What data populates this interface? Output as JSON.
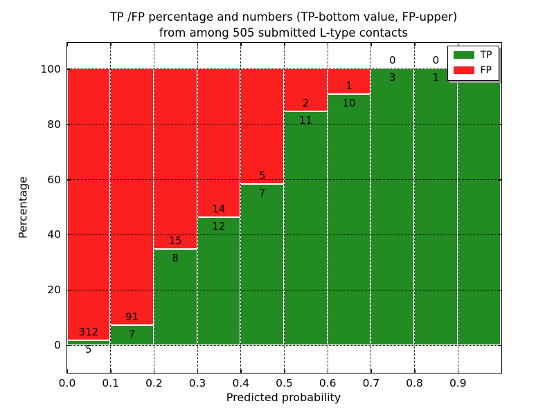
{
  "chart_data": {
    "type": "bar",
    "stacked": true,
    "title_line1": "TP /FP percentage and numbers (TP-bottom value, FP-upper)",
    "title_line2": "from among 505 submitted L-type contacts",
    "xlabel": "Predicted probability",
    "ylabel": "Percentage",
    "bin_width": 0.1,
    "bin_starts": [
      0.0,
      0.1,
      0.2,
      0.3,
      0.4,
      0.5,
      0.6,
      0.7,
      0.8,
      0.9
    ],
    "series": [
      {
        "name": "TP",
        "color": "#228b22",
        "counts": [
          5,
          7,
          8,
          12,
          7,
          11,
          10,
          3,
          1,
          1
        ]
      },
      {
        "name": "FP",
        "color": "#fb1f1f",
        "counts": [
          312,
          91,
          15,
          14,
          5,
          2,
          1,
          0,
          0,
          0
        ]
      }
    ],
    "x_tick_labels": [
      "0.0",
      "0.1",
      "0.2",
      "0.3",
      "0.4",
      "0.5",
      "0.6",
      "0.7",
      "0.8",
      "0.9"
    ],
    "y_tick_values": [
      0,
      20,
      40,
      60,
      80,
      100
    ],
    "xlim": [
      0.0,
      1.0
    ],
    "ylim": [
      -10,
      109.5
    ],
    "grid": "dotted",
    "legend": {
      "position": "upper right",
      "entries": [
        {
          "label": "TP",
          "color": "#228b22"
        },
        {
          "label": "FP",
          "color": "#fb1f1f"
        }
      ]
    }
  }
}
